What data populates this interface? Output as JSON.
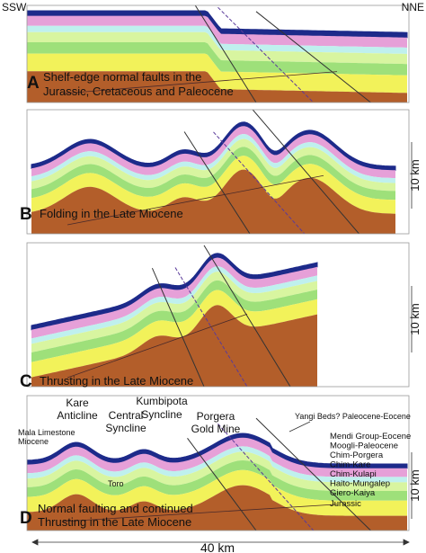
{
  "header": {
    "left": "SSW",
    "right": "NNE"
  },
  "panels": [
    {
      "letter": "A",
      "caption": [
        "Shelf-edge normal faults in the",
        "Jurassic, Cretaceous and Paleocene"
      ]
    },
    {
      "letter": "B",
      "caption": [
        "Folding in the Late Miocene"
      ]
    },
    {
      "letter": "C",
      "caption": [
        "Thrusting in the Late Miocene"
      ]
    },
    {
      "letter": "D",
      "caption": [
        "Normal faulting and continued",
        "Thrusting in the Late Miocene"
      ]
    }
  ],
  "vertical_scale": [
    "10 km",
    "10 km",
    "10 km"
  ],
  "horizontal_scale": "40 km",
  "annotations": {
    "kare": [
      "Kare",
      "Anticline"
    ],
    "central": [
      "Central",
      "Syncline"
    ],
    "kumbipota": [
      "Kumbipota",
      "Syncline"
    ],
    "porgera": [
      "Porgera",
      "Gold Mine"
    ],
    "mala": [
      "Mala Limestone",
      "Miocene"
    ],
    "yangi": "Yangi Beds? Paleocene-Eocene",
    "toro": "Toro"
  },
  "legend": [
    "Mendi Group-Eocene",
    "Moogli-Paleocene",
    "Chim-Porgera",
    "Chim-Kare",
    "Chim-Kulapi",
    "Haito-Mungalep",
    "Giero-Kaiya",
    "Jurassic"
  ]
}
